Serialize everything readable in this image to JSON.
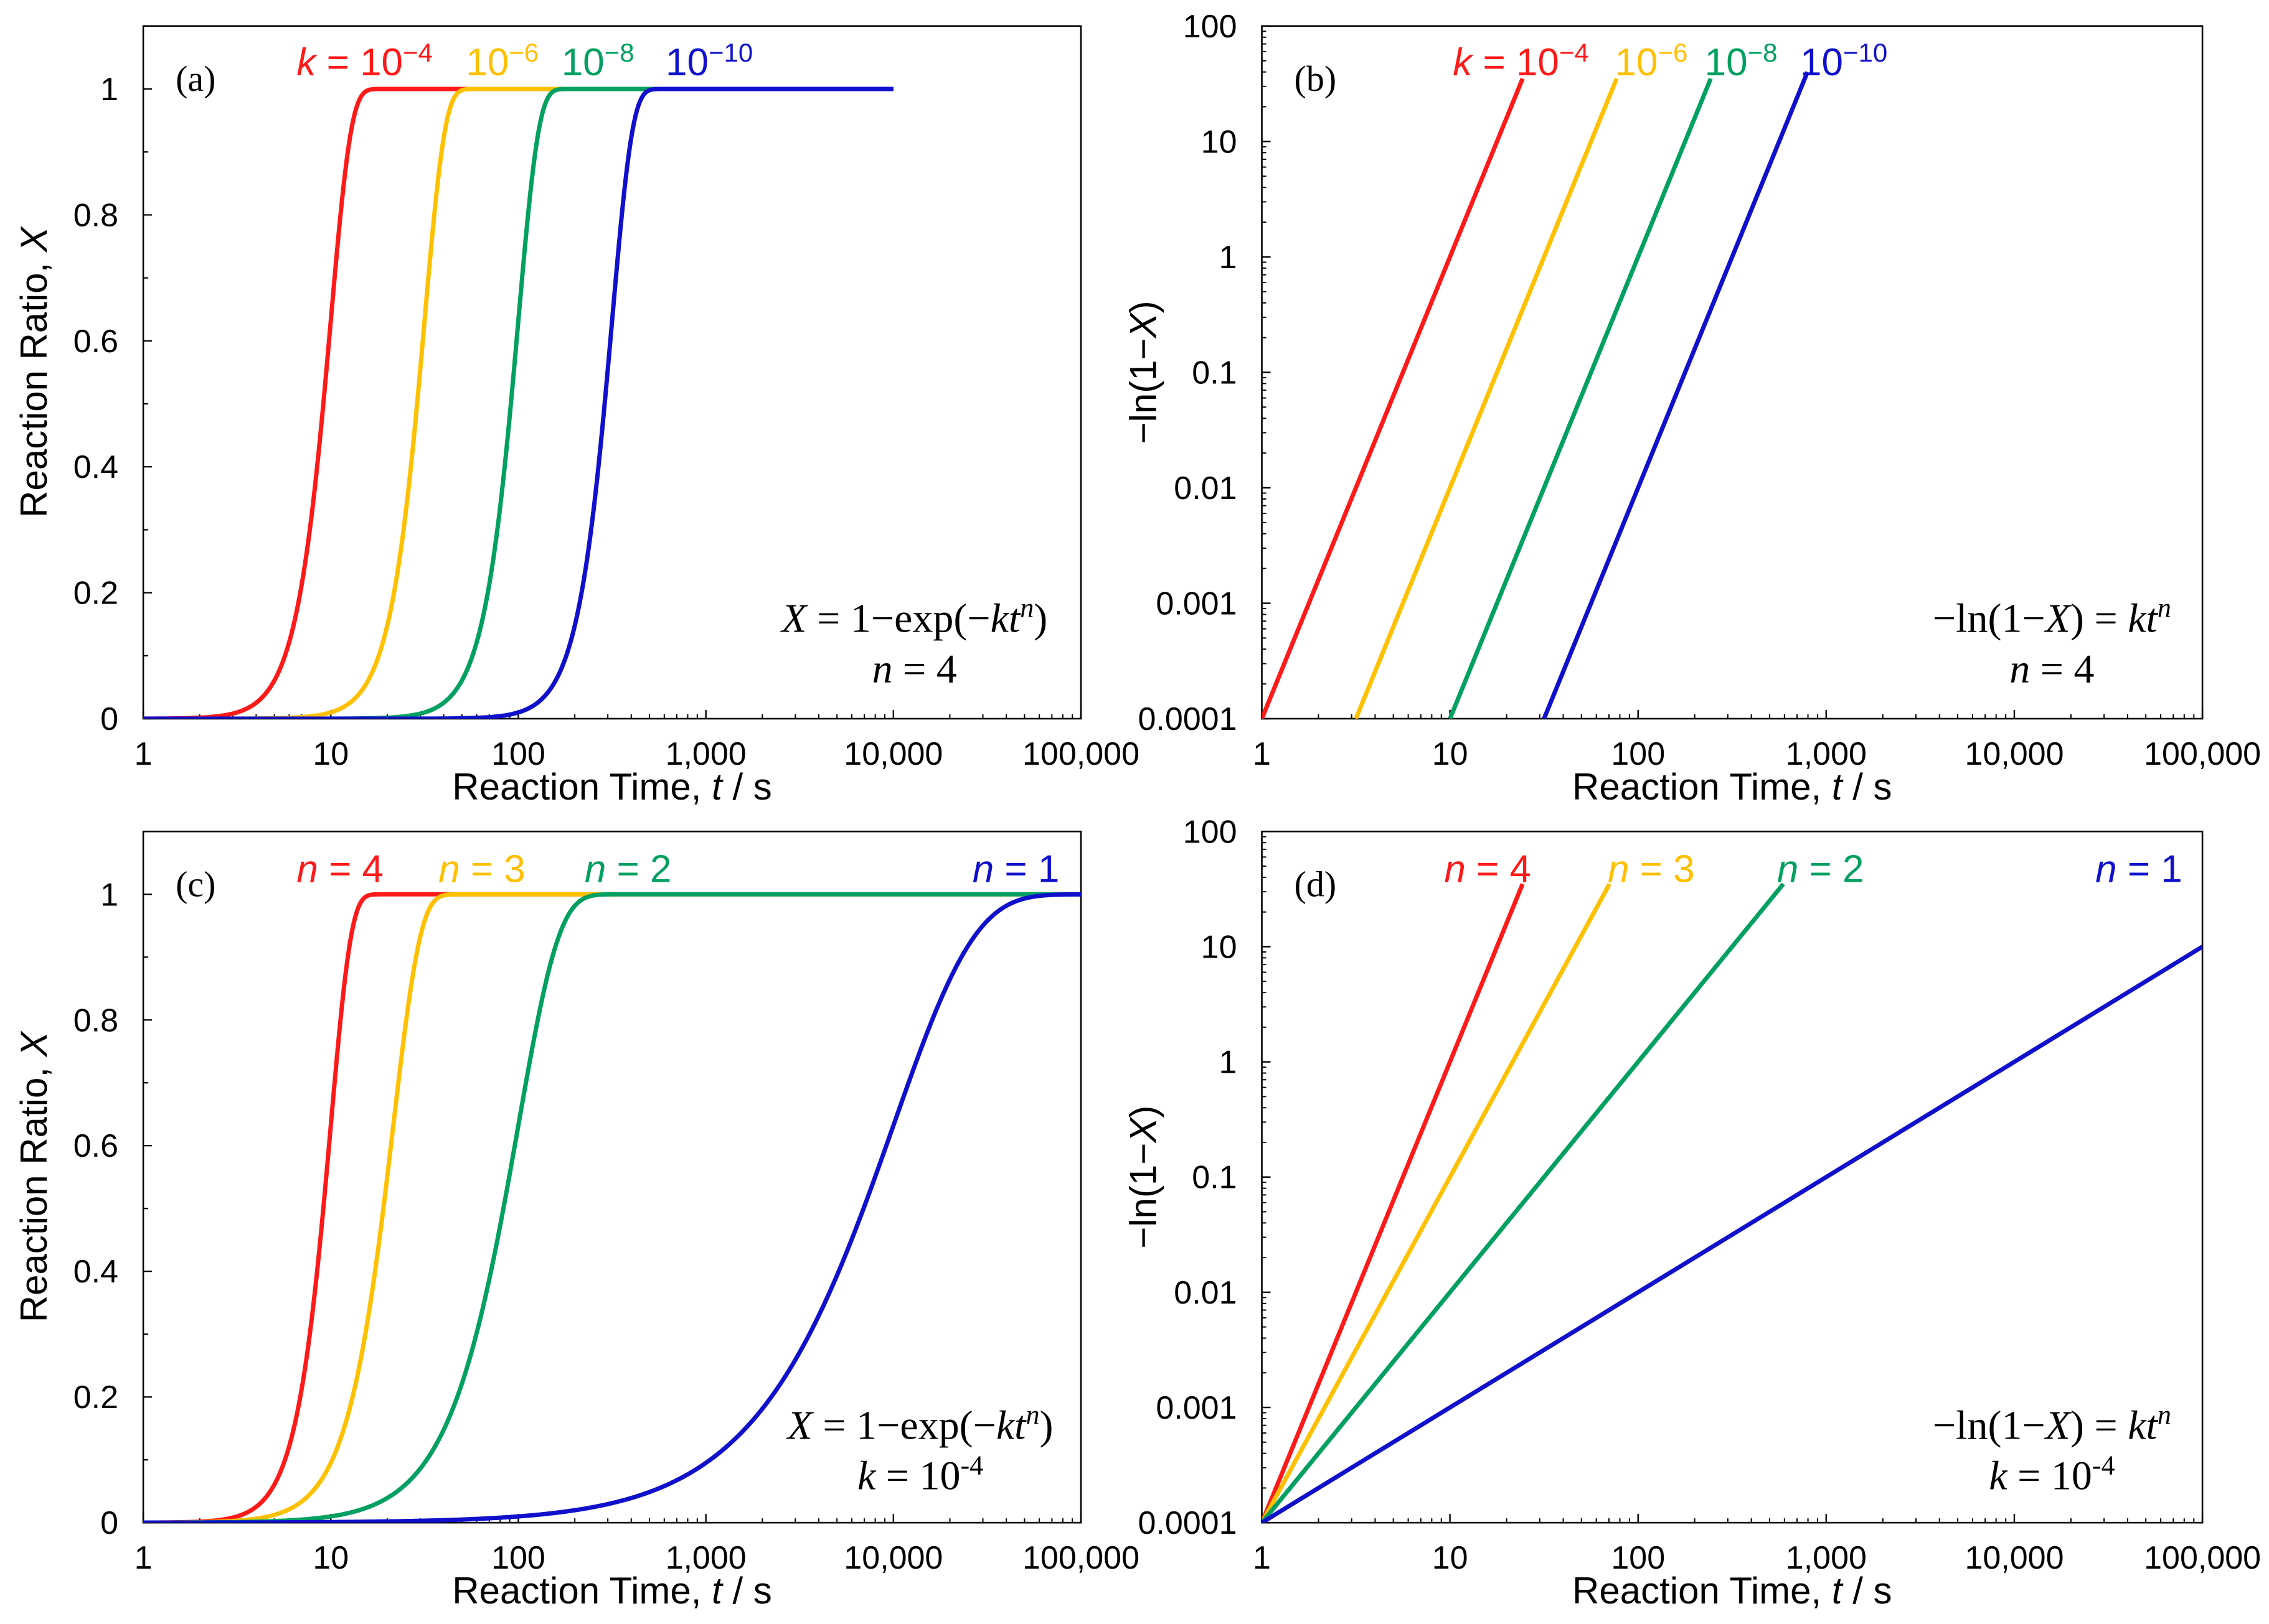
{
  "chart_data": [
    {
      "panel": "(a)",
      "type": "line",
      "xscale": "log",
      "yscale": "linear",
      "xlim": [
        1,
        100000
      ],
      "ylim": [
        0,
        1.1
      ],
      "x_ticks": [
        1,
        10,
        100,
        1000,
        10000,
        100000
      ],
      "x_tick_labels": [
        "1",
        "10",
        "100",
        "1,000",
        "10,000",
        "100,000"
      ],
      "y_ticks": [
        0,
        0.2,
        0.4,
        0.6,
        0.8,
        1
      ],
      "y_tick_labels": [
        "0",
        "0.2",
        "0.4",
        "0.6",
        "0.8",
        "1"
      ],
      "xlabel": {
        "pre": "Reaction Time, ",
        "var": "t",
        "post": " / s"
      },
      "ylabel": {
        "pre": "Reaction Ratio, ",
        "var": "X",
        "post": ""
      },
      "formula": {
        "line1": [
          "X",
          " = 1−exp(−",
          "k",
          "t",
          "n",
          ")"
        ],
        "line2": [
          "n",
          " = 4"
        ]
      },
      "grid": false,
      "series": [
        {
          "k": 0.0001,
          "n": 4,
          "t_max": 10000,
          "color": "#ff1a1a",
          "label": [
            "k",
            " = 10",
            "−4"
          ]
        },
        {
          "k": 1e-06,
          "n": 4,
          "t_max": 10000,
          "color": "#ffc000",
          "label": [
            "",
            "10",
            "−6"
          ]
        },
        {
          "k": 1e-08,
          "n": 4,
          "t_max": 10000,
          "color": "#00a060",
          "label": [
            "",
            "10",
            "−8"
          ]
        },
        {
          "k": 1e-10,
          "n": 4,
          "t_max": 10000,
          "color": "#1010cc",
          "label": [
            "",
            "10",
            "−10"
          ]
        }
      ]
    },
    {
      "panel": "(b)",
      "type": "line",
      "xscale": "log",
      "yscale": "log",
      "xlim": [
        1,
        100000
      ],
      "ylim": [
        0.0001,
        100
      ],
      "x_ticks": [
        1,
        10,
        100,
        1000,
        10000,
        100000
      ],
      "x_tick_labels": [
        "1",
        "10",
        "100",
        "1,000",
        "10,000",
        "100,000"
      ],
      "y_ticks": [
        0.0001,
        0.001,
        0.01,
        0.1,
        1,
        10,
        100
      ],
      "y_tick_labels": [
        "0.0001",
        "0.001",
        "0.01",
        "0.1",
        "1",
        "10",
        "100"
      ],
      "xlabel": {
        "pre": "Reaction Time, ",
        "var": "t",
        "post": " / s"
      },
      "ylabel": {
        "pre": "−ln(1−",
        "var": "X",
        "post": ")"
      },
      "formula": {
        "line1": [
          "",
          "−ln(1−",
          "X",
          ") = ",
          "k",
          "t",
          "n"
        ],
        "line2": [
          "n",
          " = 4"
        ]
      },
      "grid": false,
      "series": [
        {
          "k": 0.0001,
          "n": 4,
          "y_max": 35,
          "color": "#ff1a1a",
          "label": [
            "k",
            " = 10",
            "−4"
          ]
        },
        {
          "k": 1e-06,
          "n": 4,
          "y_max": 35,
          "color": "#ffc000",
          "label": [
            "",
            "10",
            "−6"
          ]
        },
        {
          "k": 1e-08,
          "n": 4,
          "y_max": 35,
          "color": "#00a060",
          "label": [
            "",
            "10",
            "−8"
          ]
        },
        {
          "k": 1e-10,
          "n": 4,
          "y_max": 40,
          "color": "#1010cc",
          "label": [
            "",
            "10",
            "−10"
          ]
        }
      ]
    },
    {
      "panel": "(c)",
      "type": "line",
      "xscale": "log",
      "yscale": "linear",
      "xlim": [
        1,
        100000
      ],
      "ylim": [
        0,
        1.1
      ],
      "x_ticks": [
        1,
        10,
        100,
        1000,
        10000,
        100000
      ],
      "x_tick_labels": [
        "1",
        "10",
        "100",
        "1,000",
        "10,000",
        "100,000"
      ],
      "y_ticks": [
        0,
        0.2,
        0.4,
        0.6,
        0.8,
        1
      ],
      "y_tick_labels": [
        "0",
        "0.2",
        "0.4",
        "0.6",
        "0.8",
        "1"
      ],
      "xlabel": {
        "pre": "Reaction Time, ",
        "var": "t",
        "post": " / s"
      },
      "ylabel": {
        "pre": "Reaction Ratio, ",
        "var": "X",
        "post": ""
      },
      "formula": {
        "line1": [
          "X",
          " = 1−exp(−",
          "k",
          "t",
          "n",
          ")"
        ],
        "line2": [
          "k",
          " = 10",
          "-4"
        ]
      },
      "grid": false,
      "series": [
        {
          "k": 0.0001,
          "n": 4,
          "t_max": 100000,
          "color": "#ff1a1a",
          "label": [
            "n",
            " = 4"
          ]
        },
        {
          "k": 0.0001,
          "n": 3,
          "t_max": 100000,
          "color": "#ffc000",
          "label": [
            "n",
            " = 3"
          ]
        },
        {
          "k": 0.0001,
          "n": 2,
          "t_max": 100000,
          "color": "#00a060",
          "label": [
            "n",
            " = 2"
          ]
        },
        {
          "k": 0.0001,
          "n": 1,
          "t_max": 100000,
          "color": "#1010cc",
          "label": [
            "n",
            " = 1"
          ]
        }
      ]
    },
    {
      "panel": "(d)",
      "type": "line",
      "xscale": "log",
      "yscale": "log",
      "xlim": [
        1,
        100000
      ],
      "ylim": [
        0.0001,
        100
      ],
      "x_ticks": [
        1,
        10,
        100,
        1000,
        10000,
        100000
      ],
      "x_tick_labels": [
        "1",
        "10",
        "100",
        "1,000",
        "10,000",
        "100,000"
      ],
      "y_ticks": [
        0.0001,
        0.001,
        0.01,
        0.1,
        1,
        10,
        100
      ],
      "y_tick_labels": [
        "0.0001",
        "0.001",
        "0.01",
        "0.1",
        "1",
        "10",
        "100"
      ],
      "xlabel": {
        "pre": "Reaction Time, ",
        "var": "t",
        "post": " / s"
      },
      "ylabel": {
        "pre": "−ln(1−",
        "var": "X",
        "post": ")"
      },
      "formula": {
        "line1": [
          "",
          "−ln(1−",
          "X",
          ") = ",
          "k",
          "t",
          "n"
        ],
        "line2": [
          "k",
          " = 10",
          "-4"
        ]
      },
      "grid": false,
      "series": [
        {
          "k": 0.0001,
          "n": 4,
          "y_max": 35,
          "color": "#ff1a1a",
          "label": [
            "n",
            " = 4"
          ]
        },
        {
          "k": 0.0001,
          "n": 3,
          "y_max": 35,
          "color": "#ffc000",
          "label": [
            "n",
            " = 3"
          ]
        },
        {
          "k": 0.0001,
          "n": 2,
          "y_max": 35,
          "color": "#00a060",
          "label": [
            "n",
            " = 2"
          ]
        },
        {
          "k": 0.0001,
          "n": 1,
          "y_max": 10,
          "color": "#1010cc",
          "label": [
            "n",
            " = 1"
          ]
        }
      ]
    }
  ]
}
